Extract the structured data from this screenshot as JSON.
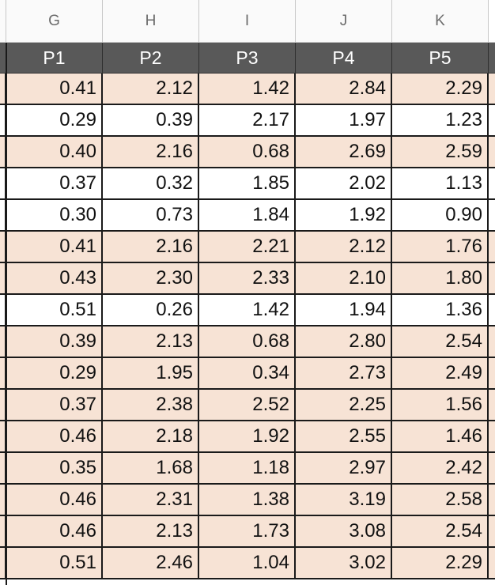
{
  "column_letters": [
    "G",
    "H",
    "I",
    "J",
    "K"
  ],
  "header": [
    "P1",
    "P2",
    "P3",
    "P4",
    "P5"
  ],
  "rows": [
    [
      "0.41",
      "2.12",
      "1.42",
      "2.84",
      "2.29"
    ],
    [
      "0.29",
      "0.39",
      "2.17",
      "1.97",
      "1.23"
    ],
    [
      "0.40",
      "2.16",
      "0.68",
      "2.69",
      "2.59"
    ],
    [
      "0.37",
      "0.32",
      "1.85",
      "2.02",
      "1.13"
    ],
    [
      "0.30",
      "0.73",
      "1.84",
      "1.92",
      "0.90"
    ],
    [
      "0.41",
      "2.16",
      "2.21",
      "2.12",
      "1.76"
    ],
    [
      "0.43",
      "2.30",
      "2.33",
      "2.10",
      "1.80"
    ],
    [
      "0.51",
      "0.26",
      "1.42",
      "1.94",
      "1.36"
    ],
    [
      "0.39",
      "2.13",
      "0.68",
      "2.80",
      "2.54"
    ],
    [
      "0.29",
      "1.95",
      "0.34",
      "2.73",
      "2.49"
    ],
    [
      "0.37",
      "2.38",
      "2.52",
      "2.25",
      "1.56"
    ],
    [
      "0.46",
      "2.18",
      "1.92",
      "2.55",
      "1.46"
    ],
    [
      "0.35",
      "1.68",
      "1.18",
      "2.97",
      "2.42"
    ],
    [
      "0.46",
      "2.31",
      "1.38",
      "3.19",
      "2.58"
    ],
    [
      "0.46",
      "2.13",
      "1.73",
      "3.08",
      "2.54"
    ],
    [
      "0.51",
      "2.46",
      "1.04",
      "3.02",
      "2.29"
    ]
  ],
  "row_fill": [
    "tinted",
    "plain",
    "tinted",
    "plain",
    "plain",
    "tinted",
    "tinted",
    "plain",
    "tinted",
    "tinted",
    "tinted",
    "tinted",
    "tinted",
    "tinted",
    "tinted",
    "tinted"
  ],
  "colors": {
    "header_bg": "#595959",
    "tint": "#f7e3d5",
    "white": "#ffffff"
  }
}
